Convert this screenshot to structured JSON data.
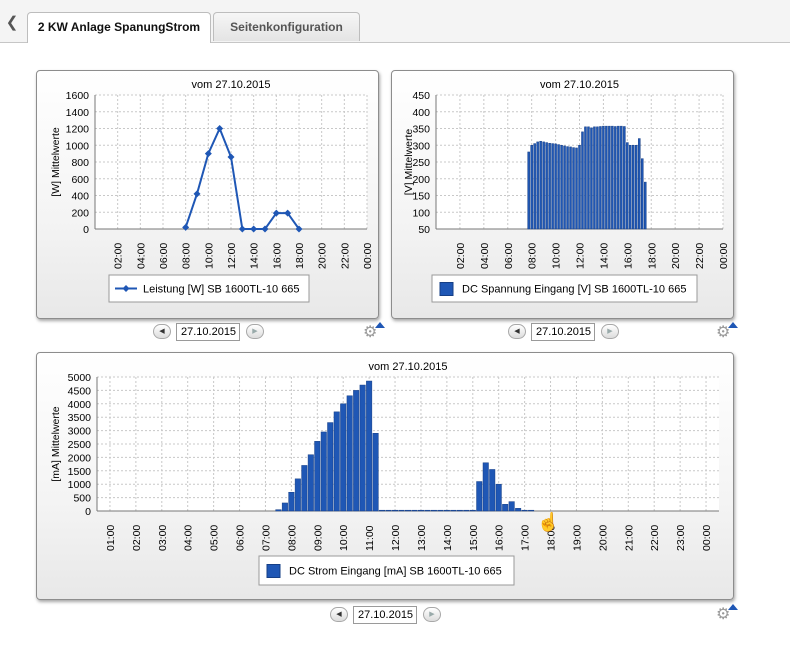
{
  "tabs": [
    {
      "label": "2 KW Anlage SpanungStrom",
      "active": true
    },
    {
      "label": "Seitenkonfiguration",
      "active": false
    }
  ],
  "icons": {
    "back": "chevron-left-icon",
    "settings": "gear-icon"
  },
  "colors": {
    "series": "#1f57b5",
    "grid": "#c8c8c8",
    "frame": "#8d8d8d"
  },
  "charts": [
    {
      "id": "leistung",
      "date_input": "27.10.2015",
      "chart_data": {
        "type": "line",
        "title": "vom 27.10.2015",
        "ylabel": "[W] Mittelwerte",
        "xlabel": "",
        "ylim": [
          0,
          1600
        ],
        "yticks": [
          0,
          200,
          400,
          600,
          800,
          1000,
          1200,
          1400,
          1600
        ],
        "xlim": [
          0,
          24
        ],
        "xticks": [
          "02:00",
          "04:00",
          "06:00",
          "08:00",
          "10:00",
          "12:00",
          "14:00",
          "16:00",
          "18:00",
          "20:00",
          "22:00",
          "00:00"
        ],
        "series": [
          {
            "name": "Leistung [W] SB 1600TL-10 665",
            "x": [
              8,
              9,
              10,
              11,
              12,
              13,
              14,
              15,
              16,
              17,
              18
            ],
            "values": [
              20,
              420,
              900,
              1200,
              860,
              0,
              0,
              0,
              190,
              190,
              0
            ]
          }
        ],
        "legend": "bottom"
      }
    },
    {
      "id": "spannung",
      "date_input": "27.10.2015",
      "chart_data": {
        "type": "bar",
        "title": "vom 27.10.2015",
        "ylabel": "[V] Mittelwerte",
        "xlabel": "",
        "ylim": [
          50,
          450
        ],
        "yticks": [
          50,
          100,
          150,
          200,
          250,
          300,
          350,
          400,
          450
        ],
        "xlim": [
          0,
          24
        ],
        "xticks": [
          "02:00",
          "04:00",
          "06:00",
          "08:00",
          "10:00",
          "12:00",
          "14:00",
          "16:00",
          "18:00",
          "20:00",
          "22:00",
          "00:00"
        ],
        "series": [
          {
            "name": "DC Spannung Eingang [V] SB 1600TL-10 665",
            "x": [
              7.75,
              8,
              8.25,
              8.5,
              8.75,
              9,
              9.25,
              9.5,
              9.75,
              10,
              10.25,
              10.5,
              10.75,
              11,
              11.25,
              11.5,
              11.75,
              12,
              12.25,
              12.5,
              12.75,
              13,
              13.25,
              13.5,
              13.75,
              14,
              14.25,
              14.5,
              14.75,
              15,
              15.25,
              15.5,
              15.75,
              16,
              16.25,
              16.5,
              16.75,
              17,
              17.25,
              17.5
            ],
            "values": [
              280,
              300,
              305,
              310,
              312,
              310,
              308,
              306,
              305,
              304,
              302,
              300,
              298,
              296,
              295,
              293,
              292,
              300,
              340,
              355,
              355,
              352,
              355,
              355,
              356,
              357,
              357,
              357,
              357,
              356,
              357,
              357,
              356,
              308,
              300,
              300,
              300,
              320,
              260,
              190
            ]
          }
        ],
        "legend": "bottom"
      }
    },
    {
      "id": "strom",
      "date_input": "27.10.2015",
      "chart_data": {
        "type": "bar",
        "title": "vom 27.10.2015",
        "ylabel": "[mA] Mittelwerte",
        "xlabel": "",
        "ylim": [
          0,
          5000
        ],
        "yticks": [
          0,
          500,
          1000,
          1500,
          2000,
          2500,
          3000,
          3500,
          4000,
          4500,
          5000
        ],
        "xlim": [
          0.5,
          24.5
        ],
        "xticks": [
          "01:00",
          "02:00",
          "03:00",
          "04:00",
          "05:00",
          "06:00",
          "07:00",
          "08:00",
          "09:00",
          "10:00",
          "11:00",
          "12:00",
          "13:00",
          "14:00",
          "15:00",
          "16:00",
          "17:00",
          "18:00",
          "19:00",
          "20:00",
          "21:00",
          "22:00",
          "23:00",
          "00:00"
        ],
        "series": [
          {
            "name": "DC Strom Eingang [mA] SB 1600TL-10 665",
            "x": [
              7.5,
              7.75,
              8,
              8.25,
              8.5,
              8.75,
              9,
              9.25,
              9.5,
              9.75,
              10,
              10.25,
              10.5,
              10.75,
              11,
              11.25,
              11.5,
              11.75,
              12,
              12.25,
              12.5,
              12.75,
              13,
              13.25,
              13.5,
              13.75,
              14,
              14.25,
              14.5,
              14.75,
              15,
              15.25,
              15.5,
              15.75,
              16,
              16.25,
              16.5,
              16.75,
              17,
              17.25,
              17.5,
              17.75
            ],
            "values": [
              50,
              300,
              700,
              1200,
              1700,
              2100,
              2600,
              2950,
              3300,
              3700,
              4000,
              4300,
              4500,
              4700,
              4850,
              2900,
              30,
              30,
              30,
              30,
              30,
              30,
              30,
              30,
              30,
              30,
              30,
              30,
              30,
              30,
              30,
              1100,
              1800,
              1550,
              1000,
              250,
              350,
              100,
              30,
              30,
              0,
              0
            ]
          }
        ],
        "legend": "bottom"
      }
    }
  ]
}
